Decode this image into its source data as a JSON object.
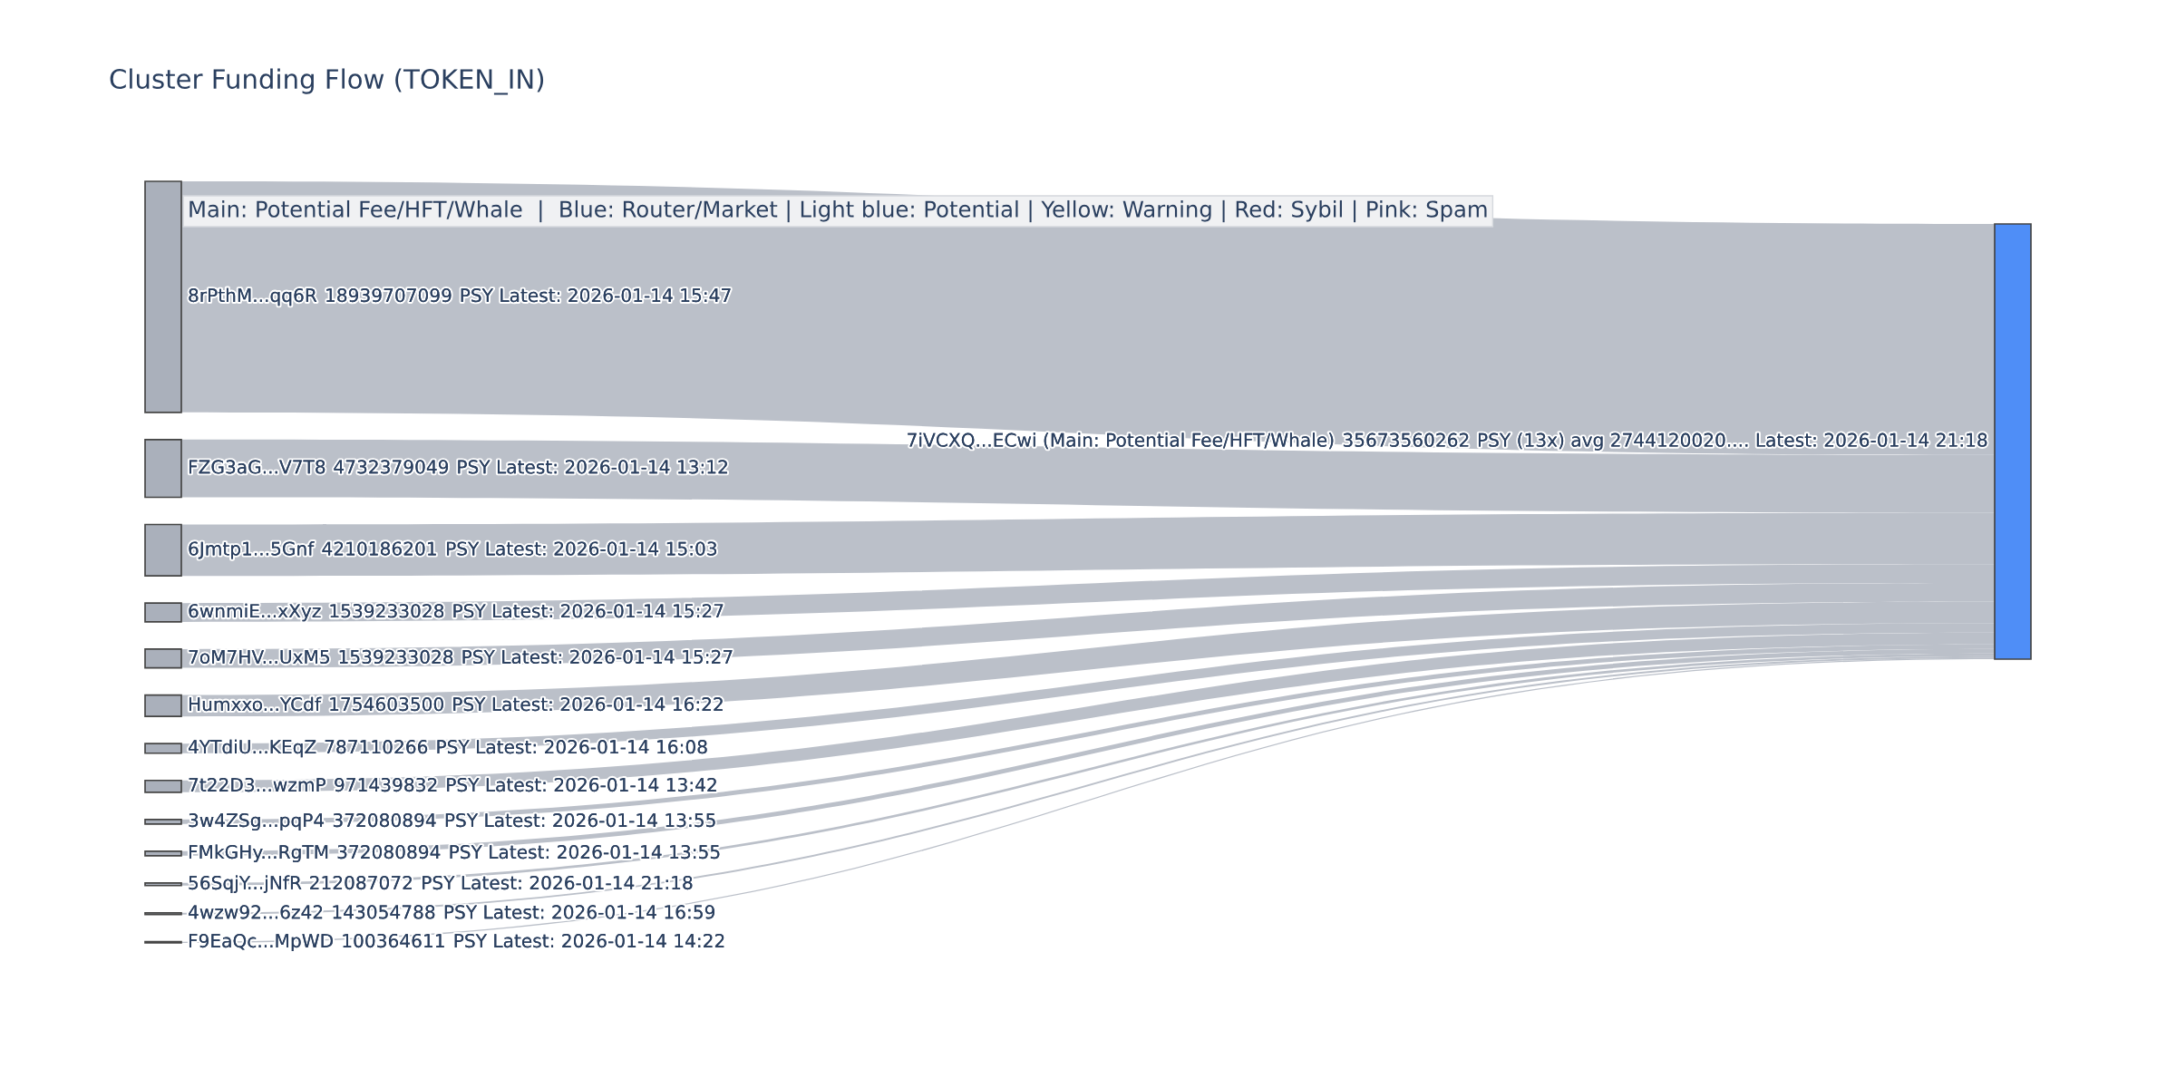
{
  "chart_data": {
    "type": "other",
    "title": "Cluster Funding Flow (TOKEN_IN)",
    "categories": [
      "8rPthM...qq6R",
      "FZG3aG...V7T8",
      "6Jmtp1...5Gnf",
      "6wnmiE...xXyz",
      "7oM7HV...UxM5",
      "Humxxo...YCdf",
      "4YTdiU...KEqZ",
      "7t22D3...wzmP",
      "3w4ZSg...pqP4",
      "FMkGHy...RgTM",
      "56SqjY...jNfR",
      "4wzw92...6z42",
      "F9EaQc...MpWD",
      "7iVCXQ...ECwi (Main: Potential Fee/HFT/Whale)"
    ],
    "values": [
      18939707099,
      4732379049,
      4210186201,
      1539233028,
      1539233028,
      1754603500,
      787110266,
      971439832,
      372080894,
      372080894,
      212087072,
      143054788,
      100364611,
      35673560262
    ],
    "data_labels": true,
    "colors": [
      "#aab0bb",
      "#aab0bb",
      "#aab0bb",
      "#aab0bb",
      "#aab0bb",
      "#aab0bb",
      "#aab0bb",
      "#aab0bb",
      "#aab0bb",
      "#aab0bb",
      "#aab0bb",
      "#aab0bb",
      "#aab0bb",
      "#4f8ef7"
    ],
    "annotations": [
      "Main: Potential Fee/HFT/Whale  |  Blue: Router/Market | Light blue: Potential | Yellow: Warning | Red: Sybil | Pink: Spam",
      {
        "text": "PSY Latest: 2026-01-14 15:47",
        "x": "8rPthM...qq6R"
      },
      {
        "text": "PSY Latest: 2026-01-14 13:12",
        "x": "FZG3aG...V7T8"
      },
      {
        "text": "PSY Latest: 2026-01-14 15:03",
        "x": "6Jmtp1...5Gnf"
      },
      {
        "text": "PSY Latest: 2026-01-14 15:27",
        "x": "6wnmiE...xXyz"
      },
      {
        "text": "PSY Latest: 2026-01-14 15:27",
        "x": "7oM7HV...UxM5"
      },
      {
        "text": "PSY Latest: 2026-01-14 16:22",
        "x": "Humxxo...YCdf"
      },
      {
        "text": "PSY Latest: 2026-01-14 16:08",
        "x": "4YTdiU...KEqZ"
      },
      {
        "text": "PSY Latest: 2026-01-14 13:42",
        "x": "7t22D3...wzmP"
      },
      {
        "text": "PSY Latest: 2026-01-14 13:55",
        "x": "3w4ZSg...pqP4"
      },
      {
        "text": "PSY Latest: 2026-01-14 13:55",
        "x": "FMkGHy...RgTM"
      },
      {
        "text": "PSY Latest: 2026-01-14 21:18",
        "x": "56SqjY...jNfR"
      },
      {
        "text": "PSY Latest: 2026-01-14 16:59",
        "x": "4wzw92...6z42"
      },
      {
        "text": "PSY Latest: 2026-01-14 14:22",
        "x": "F9EaQc...MpWD"
      },
      {
        "text": "PSY (13x) avg 2744120020.... Latest: 2026-01-14 21:18",
        "x": "7iVCXQ...ECwi (Main: Potential Fee/HFT/Whale)"
      }
    ]
  }
}
